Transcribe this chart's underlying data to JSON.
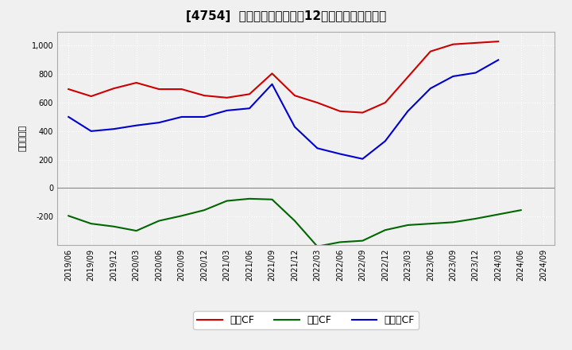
{
  "title": "[4754]  キャッシュフローの12か月移動合計の推移",
  "ylabel": "（百万円）",
  "background_color": "#f0f0f0",
  "plot_background": "#f0f0f0",
  "x_labels": [
    "2019/06",
    "2019/09",
    "2019/12",
    "2020/03",
    "2020/06",
    "2020/09",
    "2020/12",
    "2021/03",
    "2021/06",
    "2021/09",
    "2021/12",
    "2022/03",
    "2022/06",
    "2022/09",
    "2022/12",
    "2023/03",
    "2023/06",
    "2023/09",
    "2023/12",
    "2024/03",
    "2024/06",
    "2024/09"
  ],
  "operating_cf": [
    695,
    645,
    700,
    740,
    695,
    695,
    650,
    635,
    660,
    805,
    650,
    600,
    540,
    530,
    600,
    780,
    960,
    1010,
    1020,
    1030,
    null,
    null
  ],
  "investing_cf": [
    -195,
    -250,
    -270,
    -300,
    -230,
    -195,
    -155,
    -90,
    -75,
    -80,
    -230,
    -410,
    -380,
    -370,
    -295,
    -260,
    -250,
    -240,
    -215,
    -185,
    -155,
    null
  ],
  "free_cf": [
    500,
    400,
    415,
    440,
    460,
    500,
    500,
    545,
    560,
    730,
    430,
    280,
    240,
    205,
    330,
    540,
    700,
    785,
    810,
    900,
    null,
    null
  ],
  "operating_color": "#cc0000",
  "investing_color": "#006600",
  "free_color": "#0000cc",
  "ylim_min": -400,
  "ylim_max": 1100,
  "yticks": [
    -200,
    0,
    200,
    400,
    600,
    800,
    1000
  ],
  "legend_labels": [
    "営業CF",
    "投資CF",
    "フリーCF"
  ]
}
